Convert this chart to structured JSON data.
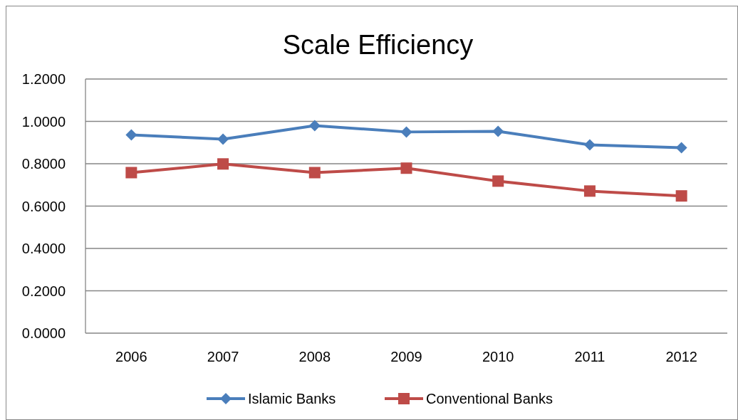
{
  "chart_data": {
    "type": "line",
    "title": "Scale Efficiency",
    "categories": [
      "2006",
      "2007",
      "2008",
      "2009",
      "2010",
      "2011",
      "2012"
    ],
    "series": [
      {
        "name": "Islamic Banks",
        "color": "#4a7ebb",
        "marker": "diamond",
        "values": [
          0.936,
          0.916,
          0.98,
          0.95,
          0.953,
          0.889,
          0.876
        ]
      },
      {
        "name": "Conventional Banks",
        "color": "#be4b48",
        "marker": "square",
        "values": [
          0.758,
          0.799,
          0.758,
          0.779,
          0.718,
          0.671,
          0.648
        ]
      }
    ],
    "ylim": [
      0,
      1.2
    ],
    "yticks": [
      {
        "value": 0,
        "label": "0.0000"
      },
      {
        "value": 0.2,
        "label": "0.2000"
      },
      {
        "value": 0.4,
        "label": "0.4000"
      },
      {
        "value": 0.6,
        "label": "0.6000"
      },
      {
        "value": 0.8,
        "label": "0.8000"
      },
      {
        "value": 1,
        "label": "1.0000"
      },
      {
        "value": 1.2,
        "label": "1.2000"
      }
    ],
    "grid": "y",
    "legend": "bottom",
    "line_style": "solid"
  }
}
